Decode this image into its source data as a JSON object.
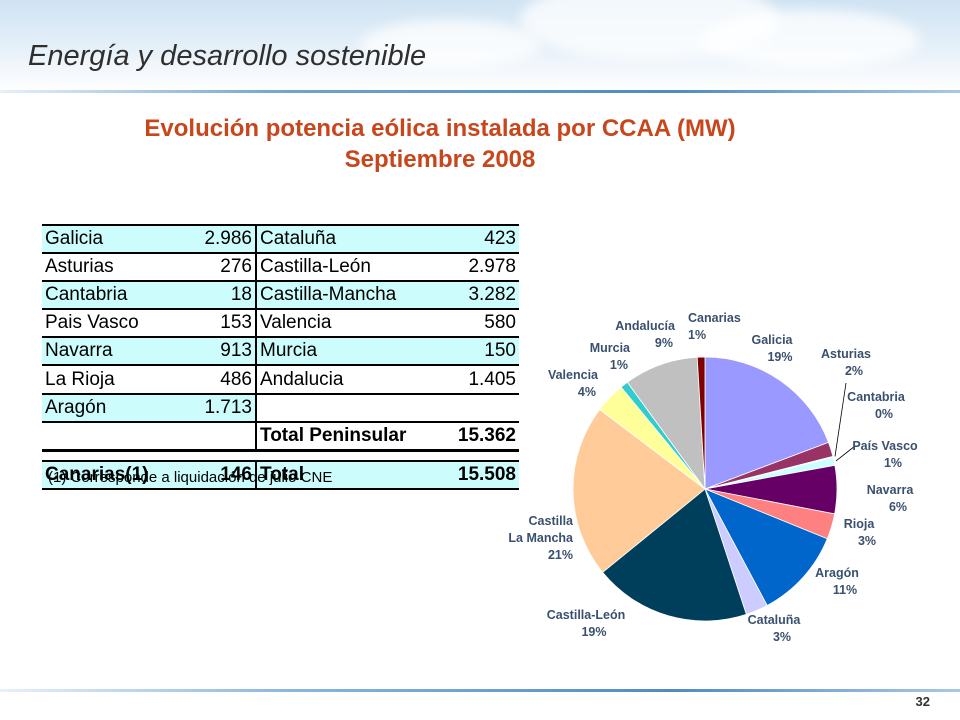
{
  "header": {
    "title": "Energía y desarrollo sostenible"
  },
  "slide": {
    "title_line1": "Evolución potencia eólica instalada por CCAA (MW)",
    "title_line2": "Septiembre 2008",
    "page_number": "32"
  },
  "table": {
    "rows": [
      {
        "left_name": "Galicia",
        "left_value": "2.986",
        "right_name": "Cataluña",
        "right_value": "423"
      },
      {
        "left_name": "Asturias",
        "left_value": "276",
        "right_name": "Castilla-León",
        "right_value": "2.978"
      },
      {
        "left_name": "Cantabria",
        "left_value": "18",
        "right_name": "Castilla-Mancha",
        "right_value": "3.282"
      },
      {
        "left_name": "Pais Vasco",
        "left_value": "153",
        "right_name": "Valencia",
        "right_value": "580"
      },
      {
        "left_name": "Navarra",
        "left_value": "913",
        "right_name": "Murcia",
        "right_value": "150"
      },
      {
        "left_name": "La Rioja",
        "left_value": "486",
        "right_name": "Andalucia",
        "right_value": "1.405"
      },
      {
        "left_name": "Aragón",
        "left_value": "1.713",
        "right_name": "",
        "right_value": ""
      }
    ],
    "peninsular": {
      "name": "Total Peninsular",
      "value": "15.362"
    },
    "last": {
      "left_name": "Canarias(1)",
      "left_value": "146",
      "right_name": "Total",
      "right_value": "15.508"
    },
    "footnote": "(1) Corresponde a liquidación de julio CNE"
  },
  "chart_data": {
    "type": "pie",
    "title": "",
    "slices": [
      {
        "label": "Galicia",
        "pct_label": "19%",
        "value": 2986,
        "color": "#9999ff"
      },
      {
        "label": "Asturias",
        "pct_label": "2%",
        "value": 276,
        "color": "#993366"
      },
      {
        "label": "Cantabria",
        "pct_label": "0%",
        "value": 18,
        "color": "#ffffcc"
      },
      {
        "label": "País Vasco",
        "pct_label": "1%",
        "value": 153,
        "color": "#ccffff"
      },
      {
        "label": "Navarra",
        "pct_label": "6%",
        "value": 913,
        "color": "#660066"
      },
      {
        "label": "Rioja",
        "pct_label": "3%",
        "value": 486,
        "color": "#ff8080"
      },
      {
        "label": "Aragón",
        "pct_label": "11%",
        "value": 1713,
        "color": "#0066cc"
      },
      {
        "label": "Cataluña",
        "pct_label": "3%",
        "value": 423,
        "color": "#ccccff"
      },
      {
        "label": "Castilla-León",
        "pct_label": "19%",
        "value": 2978,
        "color": "#003f5c"
      },
      {
        "label": "Castilla La Mancha",
        "pct_label": "21%",
        "value": 3282,
        "color": "#ffcc99"
      },
      {
        "label": "Valencia",
        "pct_label": "4%",
        "value": 580,
        "color": "#ffff99"
      },
      {
        "label": "Murcia",
        "pct_label": "1%",
        "value": 150,
        "color": "#33cccc"
      },
      {
        "label": "Andalucía",
        "pct_label": "9%",
        "value": 1405,
        "color": "#c0c0c0"
      },
      {
        "label": "Canarias",
        "pct_label": "1%",
        "value": 146,
        "color": "#800000"
      }
    ]
  }
}
